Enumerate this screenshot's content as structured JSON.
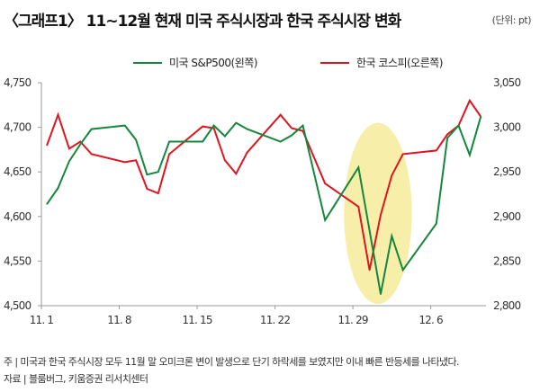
{
  "chart_data": {
    "type": "line",
    "title": "〈그래프1〉 11~12월 현재 미국 주식시장과 한국 주식시장 변화",
    "unit": "(단위: pt)",
    "x_axis": {
      "unit": "day offset from Nov 1",
      "ticks": [
        0,
        7,
        14,
        21,
        28,
        35
      ],
      "tick_labels": [
        "11. 1",
        "11. 8",
        "11. 15",
        "11. 22",
        "11. 29",
        "12. 6"
      ],
      "range": [
        0,
        40
      ]
    },
    "y_left": {
      "range": [
        4500,
        4750
      ],
      "ticks": [
        4500,
        4550,
        4600,
        4650,
        4700,
        4750
      ],
      "tick_labels": [
        "4,500",
        "4,550",
        "4,600",
        "4,650",
        "4,700",
        "4,750"
      ]
    },
    "y_right": {
      "range": [
        2800,
        3050
      ],
      "ticks": [
        2800,
        2850,
        2900,
        2950,
        3000,
        3050
      ],
      "tick_labels": [
        "2,800",
        "2,850",
        "2,900",
        "2,950",
        "3,000",
        "3,050"
      ]
    },
    "grid": false,
    "legend_position": "top-center",
    "series": [
      {
        "name": "미국 S&P500(왼쪽)",
        "axis": "left",
        "color": "#14873c",
        "x": [
          0,
          1,
          2,
          3,
          4,
          7,
          8,
          9,
          10,
          11,
          14,
          15,
          16,
          17,
          18,
          21,
          22,
          23,
          25,
          28,
          30,
          31,
          32,
          35,
          36,
          37,
          38,
          39
        ],
        "values": [
          4614,
          4632,
          4662,
          4681,
          4698,
          4702,
          4686,
          4647,
          4650,
          4684,
          4684,
          4702,
          4690,
          4705,
          4698,
          4684,
          4691,
          4702,
          4596,
          4655,
          4513,
          4578,
          4540,
          4592,
          4688,
          4702,
          4669,
          4712
        ]
      },
      {
        "name": "한국 코스피(오른쪽)",
        "axis": "right",
        "color": "#e0141e",
        "x": [
          0,
          1,
          2,
          3,
          4,
          7,
          8,
          9,
          10,
          11,
          14,
          15,
          16,
          17,
          18,
          21,
          22,
          23,
          25,
          28,
          29,
          30,
          31,
          32,
          35,
          36,
          37,
          38,
          39
        ],
        "values": [
          2980,
          3014,
          2976,
          2984,
          2970,
          2961,
          2963,
          2931,
          2926,
          2970,
          3001,
          2999,
          2963,
          2948,
          2972,
          3014,
          2999,
          2996,
          2937,
          2911,
          2840,
          2902,
          2946,
          2970,
          2974,
          2992,
          3002,
          3030,
          3012
        ]
      }
    ],
    "highlight": {
      "shape": "ellipse",
      "color": "#f7eeaa",
      "x_range": [
        26.7,
        32.8
      ],
      "y_left_range": [
        4502,
        4705
      ]
    }
  },
  "notes": {
    "note": "주 | 미국과 한국 주식시장 모두 11월 말 오미크론 변이 발생으로 단기 하락세를 보였지만 이내 빠른 반등세를 나타냈다.",
    "source": "자료 | 블룸버그, 키움증권 리서치센터"
  }
}
